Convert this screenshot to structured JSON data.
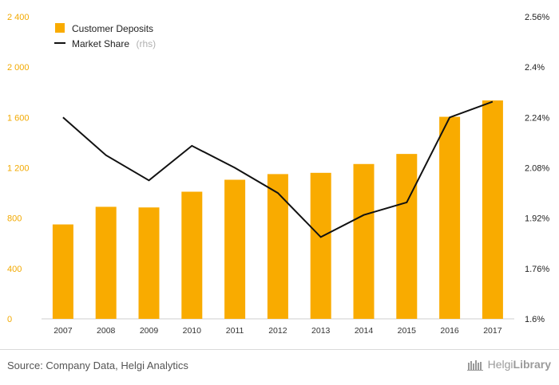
{
  "chart_data": {
    "type": "bar+line",
    "categories": [
      "2007",
      "2008",
      "2009",
      "2010",
      "2011",
      "2012",
      "2013",
      "2014",
      "2015",
      "2016",
      "2017"
    ],
    "series": [
      {
        "name": "Customer Deposits",
        "kind": "bar",
        "axis": "left",
        "color": "#f9ab00",
        "values": [
          750,
          890,
          885,
          1010,
          1105,
          1150,
          1160,
          1230,
          1310,
          1605,
          1735
        ]
      },
      {
        "name": "Market Share",
        "name_suffix": "(rhs)",
        "kind": "line",
        "axis": "right",
        "color": "#111111",
        "values": [
          2.24,
          2.12,
          2.04,
          2.15,
          2.08,
          2.0,
          1.86,
          1.93,
          1.97,
          2.24,
          2.29
        ]
      }
    ],
    "y_left": {
      "min": 0,
      "max": 2400,
      "ticks": [
        0,
        400,
        800,
        1200,
        1600,
        2000,
        2400
      ],
      "tick_labels": [
        "0",
        "400",
        "800",
        "1 200",
        "1 600",
        "2 000",
        "2 400"
      ],
      "color": "#f2a900"
    },
    "y_right": {
      "min": 1.6,
      "max": 2.56,
      "ticks": [
        1.6,
        1.76,
        1.92,
        2.08,
        2.24,
        2.4,
        2.56
      ],
      "tick_labels": [
        "1.6%",
        "1.76%",
        "1.92%",
        "2.08%",
        "2.24%",
        "2.4%",
        "2.56%"
      ]
    },
    "grid": false,
    "legend_position": "top-left"
  },
  "footer": {
    "source": "Source: Company Data, Helgi Analytics",
    "logo_text_light": "Helgi",
    "logo_text_bold": "Library"
  }
}
